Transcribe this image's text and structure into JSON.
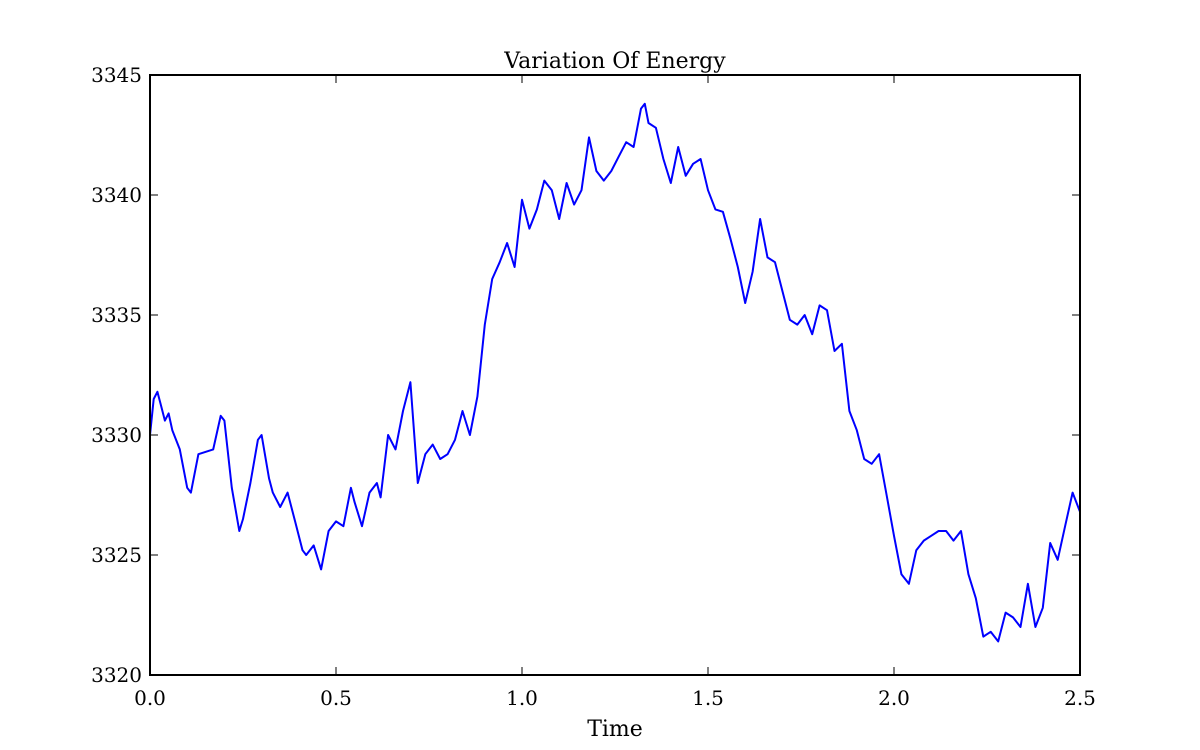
{
  "chart_data": {
    "type": "line",
    "title": "Variation Of Energy",
    "xlabel": "Time",
    "ylabel": "",
    "xlim": [
      0.0,
      2.5
    ],
    "ylim": [
      3320,
      3345
    ],
    "xticks": [
      "0.0",
      "0.5",
      "1.0",
      "1.5",
      "2.0",
      "2.5"
    ],
    "yticks": [
      "3320",
      "3325",
      "3330",
      "3335",
      "3340",
      "3345"
    ],
    "grid": false,
    "series_color": "#0000ff",
    "series": [
      {
        "x": [
          0.0,
          0.01,
          0.02,
          0.03,
          0.04,
          0.05,
          0.06,
          0.08,
          0.1,
          0.11,
          0.13,
          0.15,
          0.17,
          0.19,
          0.2,
          0.22,
          0.24,
          0.25,
          0.27,
          0.29,
          0.3,
          0.32,
          0.33,
          0.35,
          0.37,
          0.39,
          0.41,
          0.42,
          0.44,
          0.46,
          0.48,
          0.5,
          0.52,
          0.54,
          0.55,
          0.57,
          0.59,
          0.61,
          0.62,
          0.64,
          0.66,
          0.68,
          0.7,
          0.72,
          0.74,
          0.76,
          0.78,
          0.8,
          0.82,
          0.84,
          0.86,
          0.88,
          0.9,
          0.92,
          0.94,
          0.96,
          0.98,
          1.0,
          1.02,
          1.04,
          1.06,
          1.08,
          1.1,
          1.12,
          1.14,
          1.16,
          1.18,
          1.2,
          1.22,
          1.24,
          1.26,
          1.28,
          1.3,
          1.32,
          1.33,
          1.34,
          1.36,
          1.38,
          1.4,
          1.42,
          1.44,
          1.46,
          1.48,
          1.5,
          1.52,
          1.54,
          1.56,
          1.58,
          1.6,
          1.62,
          1.64,
          1.66,
          1.68,
          1.7,
          1.72,
          1.74,
          1.76,
          1.78,
          1.8,
          1.82,
          1.84,
          1.86,
          1.88,
          1.9,
          1.92,
          1.94,
          1.96,
          1.98,
          2.0,
          2.02,
          2.04,
          2.06,
          2.08,
          2.1,
          2.12,
          2.14,
          2.16,
          2.18,
          2.2,
          2.22,
          2.24,
          2.26,
          2.28,
          2.3,
          2.32,
          2.34,
          2.36,
          2.38,
          2.4,
          2.42,
          2.44,
          2.46,
          2.48,
          2.5
        ],
        "values": [
          3330.0,
          3331.5,
          3331.8,
          3331.2,
          3330.6,
          3330.9,
          3330.2,
          3329.4,
          3327.8,
          3327.6,
          3329.2,
          3329.3,
          3329.4,
          3330.8,
          3330.6,
          3327.8,
          3326.0,
          3326.5,
          3328.0,
          3329.8,
          3330.0,
          3328.2,
          3327.6,
          3327.0,
          3327.6,
          3326.4,
          3325.2,
          3325.0,
          3325.4,
          3324.4,
          3326.0,
          3326.4,
          3326.2,
          3327.8,
          3327.2,
          3326.2,
          3327.6,
          3328.0,
          3327.4,
          3330.0,
          3329.4,
          3331.0,
          3332.2,
          3328.0,
          3329.2,
          3329.6,
          3329.0,
          3329.2,
          3329.8,
          3331.0,
          3330.0,
          3331.6,
          3334.6,
          3336.5,
          3337.2,
          3338.0,
          3337.0,
          3339.8,
          3338.6,
          3339.4,
          3340.6,
          3340.2,
          3339.0,
          3340.5,
          3339.6,
          3340.2,
          3342.4,
          3341.0,
          3340.6,
          3341.0,
          3341.6,
          3342.2,
          3342.0,
          3343.6,
          3343.8,
          3343.0,
          3342.8,
          3341.5,
          3340.5,
          3342.0,
          3340.8,
          3341.3,
          3341.5,
          3340.2,
          3339.4,
          3339.3,
          3338.2,
          3337.0,
          3335.5,
          3336.8,
          3339.0,
          3337.4,
          3337.2,
          3336.0,
          3334.8,
          3334.6,
          3335.0,
          3334.2,
          3335.4,
          3335.2,
          3333.5,
          3333.8,
          3331.0,
          3330.2,
          3329.0,
          3328.8,
          3329.2,
          3327.5,
          3325.8,
          3324.2,
          3323.8,
          3325.2,
          3325.6,
          3325.8,
          3326.0,
          3326.0,
          3325.6,
          3326.0,
          3324.2,
          3323.2,
          3321.6,
          3321.8,
          3321.4,
          3322.6,
          3322.4,
          3322.0,
          3323.8,
          3322.0,
          3322.8,
          3325.5,
          3324.8,
          3326.2,
          3327.6,
          3326.8
        ]
      }
    ]
  }
}
